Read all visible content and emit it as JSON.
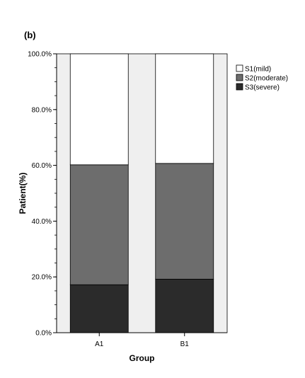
{
  "panel_label": "(b)",
  "chart_data": {
    "type": "bar",
    "stacked": true,
    "categories": [
      "A1",
      "B1"
    ],
    "series": [
      {
        "name": "S3(severe)",
        "values": [
          17.2,
          19.2
        ],
        "color": "#2b2b2b"
      },
      {
        "name": "S2(moderate)",
        "values": [
          43.0,
          41.5
        ],
        "color": "#6d6d6d"
      },
      {
        "name": "S1(mild)",
        "values": [
          39.8,
          39.3
        ],
        "color": "#ffffff"
      }
    ],
    "legend_order": [
      "S1(mild)",
      "S2(moderate)",
      "S3(severe)"
    ],
    "xlabel": "Group",
    "ylabel": "Patient(%)",
    "ylim": [
      0,
      100
    ],
    "y_ticks": [
      "0.0%",
      "20.0%",
      "40.0%",
      "60.0%",
      "80.0%",
      "100.0%"
    ],
    "legend_position": "top-right",
    "plot_background": "#efefef",
    "grid": false
  }
}
